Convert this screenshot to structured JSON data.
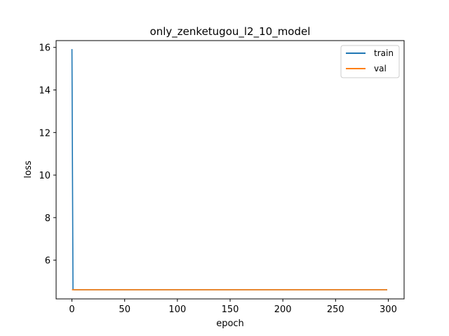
{
  "chart_data": {
    "type": "line",
    "title": "only_zenketugou_l2_10_model",
    "xlabel": "epoch",
    "ylabel": "loss",
    "xlim": [
      -15,
      315
    ],
    "ylim": [
      4.18,
      16.32
    ],
    "xticks": [
      0,
      50,
      100,
      150,
      200,
      250,
      300
    ],
    "yticks": [
      6,
      8,
      10,
      12,
      14,
      16
    ],
    "grid": false,
    "legend_position": "top-right",
    "series": [
      {
        "name": "train",
        "color": "#1f77b4",
        "x": [
          0,
          1,
          2,
          50,
          100,
          150,
          200,
          250,
          299
        ],
        "y": [
          15.92,
          4.62,
          4.61,
          4.61,
          4.61,
          4.61,
          4.61,
          4.61,
          4.61
        ]
      },
      {
        "name": "val",
        "color": "#ff7f0e",
        "x": [
          0,
          1,
          50,
          100,
          150,
          200,
          250,
          299
        ],
        "y": [
          4.61,
          4.61,
          4.61,
          4.61,
          4.61,
          4.61,
          4.61,
          4.61
        ]
      }
    ]
  }
}
